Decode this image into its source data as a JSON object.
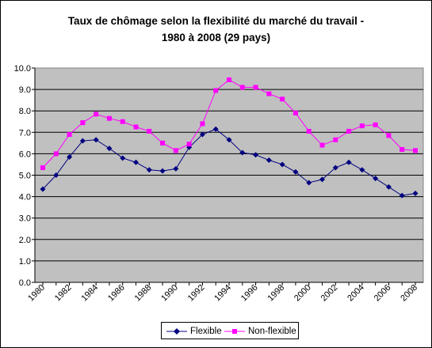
{
  "chart_data": {
    "type": "line",
    "title": "Taux de chômage selon la flexibilité du marché du travail -",
    "subtitle": "1980 à 2008 (29 pays)",
    "x": [
      1980,
      1981,
      1982,
      1983,
      1984,
      1985,
      1986,
      1987,
      1988,
      1989,
      1990,
      1991,
      1992,
      1993,
      1994,
      1995,
      1996,
      1997,
      1998,
      1999,
      2000,
      2001,
      2002,
      2003,
      2004,
      2005,
      2006,
      2007,
      2008
    ],
    "x_tick_labels": [
      "1980",
      "1982",
      "1984",
      "1986",
      "1988",
      "1990",
      "1992",
      "1994",
      "1996",
      "1998",
      "2000",
      "2002",
      "2004",
      "2006",
      "2008"
    ],
    "y_tick_labels": [
      "0.0",
      "1.0",
      "2.0",
      "3.0",
      "4.0",
      "5.0",
      "6.0",
      "7.0",
      "8.0",
      "9.0",
      "10.0"
    ],
    "ylim": [
      0,
      10
    ],
    "grid": true,
    "legend_position": "bottom",
    "series": [
      {
        "name": "Flexible",
        "color": "#000080",
        "marker": "diamond",
        "values": [
          4.35,
          5.0,
          5.85,
          6.6,
          6.65,
          6.25,
          5.8,
          5.6,
          5.25,
          5.2,
          5.3,
          6.3,
          6.9,
          7.15,
          6.65,
          6.05,
          5.95,
          5.7,
          5.5,
          5.15,
          4.65,
          4.8,
          5.35,
          5.6,
          5.25,
          4.85,
          4.45,
          4.05,
          4.15
        ]
      },
      {
        "name": "Non-flexible",
        "color": "#ff00ff",
        "marker": "square",
        "values": [
          5.35,
          6.0,
          6.9,
          7.45,
          7.85,
          7.65,
          7.5,
          7.25,
          7.05,
          6.5,
          6.15,
          6.45,
          7.4,
          8.95,
          9.45,
          9.1,
          9.1,
          8.8,
          8.55,
          7.9,
          7.05,
          6.4,
          6.65,
          7.05,
          7.3,
          7.35,
          6.85,
          6.2,
          6.15
        ]
      }
    ]
  }
}
